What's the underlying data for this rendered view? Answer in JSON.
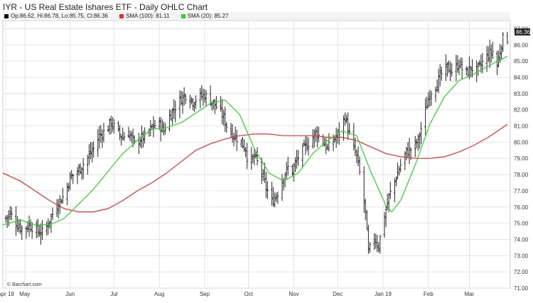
{
  "title": "IYR - US Real Estate Ishares ETF - Daily OHLC Chart",
  "legend": {
    "ohlc": "Op:86.62, Hi:86.78, Lo:85.75, Cl:86.36",
    "sma100": "SMA (100): 81.11",
    "sma20": "SMA (20): 85.27"
  },
  "watermark": "© Barchart.com",
  "last_price_label": "86.36",
  "colors": {
    "bars": "#222222",
    "sma100": "#e03030",
    "sma20": "#33cc33",
    "grid": "#dddddd",
    "badge": "#222222"
  },
  "chart_data": {
    "type": "ohlc",
    "title": "IYR - US Real Estate Ishares ETF - Daily OHLC Chart",
    "x_ticks": [
      {
        "label": "Apr 18",
        "day": 0
      },
      {
        "label": "May",
        "day": 13
      },
      {
        "label": "Jun",
        "day": 44
      },
      {
        "label": "Jul",
        "day": 74
      },
      {
        "label": "Aug",
        "day": 105
      },
      {
        "label": "Sep",
        "day": 136
      },
      {
        "label": "Oct",
        "day": 166
      },
      {
        "label": "Nov",
        "day": 197
      },
      {
        "label": "Dec",
        "day": 227
      },
      {
        "label": "Jan 19",
        "day": 258
      },
      {
        "label": "Feb",
        "day": 289
      },
      {
        "label": "Mar",
        "day": 317
      }
    ],
    "x_range": [
      -2,
      345
    ],
    "y_range": [
      71,
      87.5
    ],
    "y_ticks": [
      71,
      72,
      73,
      74,
      75,
      76,
      77,
      78,
      79,
      80,
      81,
      82,
      83,
      84,
      85,
      86,
      87
    ],
    "close_path": [
      [
        0,
        75.3
      ],
      [
        3,
        75.6
      ],
      [
        8,
        74.9
      ],
      [
        12,
        74.6
      ],
      [
        16,
        74.9
      ],
      [
        22,
        74.5
      ],
      [
        26,
        74.4
      ],
      [
        30,
        75.2
      ],
      [
        36,
        76.3
      ],
      [
        40,
        76.7
      ],
      [
        44,
        77.8
      ],
      [
        50,
        78.3
      ],
      [
        55,
        78.9
      ],
      [
        60,
        79.6
      ],
      [
        64,
        80.4
      ],
      [
        68,
        80.7
      ],
      [
        72,
        81.2
      ],
      [
        76,
        80.7
      ],
      [
        80,
        80.3
      ],
      [
        84,
        80.6
      ],
      [
        88,
        79.9
      ],
      [
        92,
        80.2
      ],
      [
        96,
        80.4
      ],
      [
        100,
        80.9
      ],
      [
        104,
        81.2
      ],
      [
        108,
        80.7
      ],
      [
        112,
        81.6
      ],
      [
        116,
        82.2
      ],
      [
        120,
        82.7
      ],
      [
        124,
        83.0
      ],
      [
        128,
        82.5
      ],
      [
        132,
        82.8
      ],
      [
        136,
        82.9
      ],
      [
        140,
        82.6
      ],
      [
        144,
        82.2
      ],
      [
        148,
        81.7
      ],
      [
        152,
        80.8
      ],
      [
        156,
        80.4
      ],
      [
        160,
        80.1
      ],
      [
        164,
        79.6
      ],
      [
        166,
        78.6
      ],
      [
        170,
        79.1
      ],
      [
        174,
        78.4
      ],
      [
        178,
        77.2
      ],
      [
        182,
        76.3
      ],
      [
        186,
        76.9
      ],
      [
        190,
        77.9
      ],
      [
        194,
        78.6
      ],
      [
        196,
        78.2
      ],
      [
        200,
        79.1
      ],
      [
        204,
        79.6
      ],
      [
        208,
        80.1
      ],
      [
        212,
        80.6
      ],
      [
        216,
        80.2
      ],
      [
        220,
        79.6
      ],
      [
        224,
        80.1
      ],
      [
        228,
        80.6
      ],
      [
        232,
        81.6
      ],
      [
        236,
        80.1
      ],
      [
        240,
        79.1
      ],
      [
        243,
        77.6
      ],
      [
        246,
        75.6
      ],
      [
        248,
        73.2
      ],
      [
        252,
        74.1
      ],
      [
        255,
        73.6
      ],
      [
        258,
        75.1
      ],
      [
        262,
        76.6
      ],
      [
        266,
        77.6
      ],
      [
        270,
        78.6
      ],
      [
        274,
        79.4
      ],
      [
        278,
        79.6
      ],
      [
        282,
        80.1
      ],
      [
        286,
        81.6
      ],
      [
        290,
        83.0
      ],
      [
        294,
        83.5
      ],
      [
        298,
        84.2
      ],
      [
        302,
        84.6
      ],
      [
        306,
        84.3
      ],
      [
        310,
        84.9
      ],
      [
        314,
        84.1
      ],
      [
        318,
        84.6
      ],
      [
        322,
        84.4
      ],
      [
        326,
        84.9
      ],
      [
        330,
        85.4
      ],
      [
        333,
        85.6
      ],
      [
        336,
        84.7
      ],
      [
        339,
        86.1
      ],
      [
        341,
        86.6
      ],
      [
        343,
        86.4
      ]
    ],
    "sma100": [
      [
        -2,
        78.1
      ],
      [
        10,
        77.6
      ],
      [
        20,
        77.0
      ],
      [
        30,
        76.4
      ],
      [
        40,
        75.9
      ],
      [
        50,
        75.7
      ],
      [
        60,
        75.7
      ],
      [
        70,
        75.9
      ],
      [
        80,
        76.4
      ],
      [
        90,
        77.0
      ],
      [
        100,
        77.5
      ],
      [
        110,
        78.1
      ],
      [
        120,
        78.8
      ],
      [
        130,
        79.5
      ],
      [
        140,
        79.9
      ],
      [
        150,
        80.2
      ],
      [
        160,
        80.4
      ],
      [
        170,
        80.5
      ],
      [
        180,
        80.5
      ],
      [
        190,
        80.4
      ],
      [
        200,
        80.4
      ],
      [
        210,
        80.4
      ],
      [
        220,
        80.3
      ],
      [
        230,
        80.3
      ],
      [
        240,
        80.1
      ],
      [
        250,
        79.7
      ],
      [
        260,
        79.3
      ],
      [
        270,
        79.1
      ],
      [
        280,
        79.0
      ],
      [
        290,
        79.0
      ],
      [
        300,
        79.1
      ],
      [
        310,
        79.4
      ],
      [
        320,
        79.8
      ],
      [
        330,
        80.3
      ],
      [
        343,
        81.1
      ]
    ],
    "sma20": [
      [
        -2,
        74.9
      ],
      [
        10,
        75.2
      ],
      [
        20,
        74.9
      ],
      [
        30,
        74.9
      ],
      [
        40,
        75.3
      ],
      [
        50,
        76.2
      ],
      [
        60,
        77.1
      ],
      [
        70,
        78.2
      ],
      [
        80,
        79.3
      ],
      [
        90,
        80.1
      ],
      [
        100,
        80.8
      ],
      [
        110,
        80.9
      ],
      [
        120,
        81.2
      ],
      [
        130,
        81.8
      ],
      [
        140,
        82.4
      ],
      [
        150,
        82.6
      ],
      [
        160,
        81.7
      ],
      [
        170,
        79.6
      ],
      [
        180,
        78.1
      ],
      [
        190,
        77.6
      ],
      [
        200,
        78.1
      ],
      [
        210,
        79.3
      ],
      [
        220,
        80.1
      ],
      [
        230,
        80.7
      ],
      [
        240,
        80.4
      ],
      [
        250,
        78.1
      ],
      [
        260,
        76.1
      ],
      [
        264,
        75.7
      ],
      [
        270,
        76.4
      ],
      [
        280,
        78.6
      ],
      [
        290,
        81.1
      ],
      [
        300,
        82.8
      ],
      [
        310,
        83.8
      ],
      [
        320,
        84.2
      ],
      [
        330,
        84.7
      ],
      [
        343,
        85.3
      ]
    ]
  }
}
